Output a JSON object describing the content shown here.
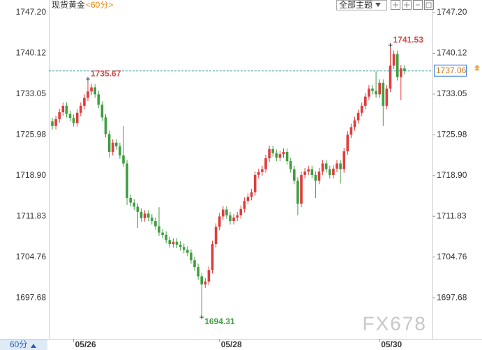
{
  "header": {
    "title": "现货黄金",
    "period": "<60分>",
    "theme_button": "全部主题"
  },
  "footer": {
    "period_tab": "60分",
    "watermark": "FX678"
  },
  "chart_data": {
    "type": "candlestick",
    "categories": [
      null,
      null,
      null,
      null,
      null,
      null,
      "05/26",
      null,
      null,
      null,
      null,
      null,
      null,
      null,
      null,
      null,
      null,
      null,
      null,
      null,
      null,
      null,
      null,
      null,
      null,
      null,
      null,
      null,
      null,
      null,
      null,
      null,
      null,
      null,
      null,
      null,
      null,
      null,
      null,
      null,
      null,
      null,
      null,
      null,
      null,
      null,
      null,
      "05/28",
      null,
      null,
      null,
      null,
      null,
      null,
      null,
      null,
      null,
      null,
      null,
      null,
      null,
      null,
      null,
      null,
      null,
      null,
      null,
      null,
      null,
      null,
      null,
      null,
      null,
      null,
      null,
      null,
      null,
      null,
      null,
      null,
      null,
      null,
      null,
      null,
      null,
      null,
      null,
      null,
      null,
      null,
      null,
      null,
      "05/30",
      null,
      null,
      null,
      null,
      null,
      null,
      null
    ],
    "candles": {
      "open": [
        1728.3,
        1727.5,
        1728.7,
        1729.9,
        1731.0,
        1729.6,
        1728.9,
        1728.0,
        1729.8,
        1731.0,
        1732.4,
        1733.5,
        1734.2,
        1733.0,
        1731.2,
        1729.0,
        1726.1,
        1723.0,
        1724.6,
        1724.0,
        1722.4,
        1721.0,
        1715.0,
        1714.2,
        1713.5,
        1712.6,
        1711.5,
        1712.3,
        1711.6,
        1711.0,
        1710.1,
        1709.0,
        1708.6,
        1707.7,
        1707.0,
        1707.4,
        1706.9,
        1706.5,
        1706.0,
        1705.5,
        1704.2,
        1703.0,
        1701.4,
        1700.0,
        1700.5,
        1702.5,
        1707.0,
        1710.0,
        1711.8,
        1713.0,
        1712.0,
        1711.0,
        1711.6,
        1712.0,
        1713.1,
        1714.5,
        1715.2,
        1716.0,
        1719.0,
        1719.5,
        1720.0,
        1721.9,
        1723.5,
        1722.8,
        1722.0,
        1722.6,
        1723.0,
        1721.4,
        1720.0,
        1718.0,
        1714.0,
        1719.0,
        1719.6,
        1720.0,
        1719.0,
        1718.0,
        1719.6,
        1721.0,
        1720.0,
        1719.0,
        1720.1,
        1721.0,
        1720.0,
        1723.1,
        1726.0,
        1727.3,
        1728.5,
        1729.8,
        1731.0,
        1732.6,
        1734.0,
        1733.6,
        1733.0,
        1735.0,
        1731.0,
        1734.0,
        1738.0,
        1740.0,
        1736.0,
        1737.5
      ],
      "high": [
        1728.9,
        1729.3,
        1730.5,
        1731.6,
        1731.6,
        1730.2,
        1729.5,
        1730.4,
        1731.6,
        1733.0,
        1735.67,
        1734.8,
        1734.8,
        1733.6,
        1731.8,
        1729.6,
        1726.7,
        1725.2,
        1725.2,
        1724.6,
        1727.5,
        1721.6,
        1715.6,
        1714.8,
        1714.1,
        1713.2,
        1712.9,
        1712.9,
        1712.2,
        1711.6,
        1713.4,
        1709.6,
        1709.2,
        1708.3,
        1708.0,
        1708.0,
        1707.5,
        1707.1,
        1706.6,
        1706.1,
        1704.8,
        1703.6,
        1702.0,
        1701.1,
        1703.1,
        1707.6,
        1710.6,
        1712.4,
        1713.6,
        1713.6,
        1712.6,
        1712.2,
        1712.6,
        1713.7,
        1715.1,
        1715.8,
        1716.6,
        1719.6,
        1720.1,
        1720.6,
        1722.5,
        1724.1,
        1724.1,
        1723.4,
        1723.2,
        1723.6,
        1723.6,
        1722.0,
        1720.6,
        1718.6,
        1719.6,
        1720.2,
        1720.6,
        1720.6,
        1719.6,
        1720.2,
        1721.6,
        1721.6,
        1720.6,
        1720.7,
        1721.6,
        1721.6,
        1723.7,
        1726.6,
        1727.9,
        1729.1,
        1730.4,
        1731.6,
        1733.2,
        1734.6,
        1734.6,
        1737.0,
        1735.6,
        1735.6,
        1734.6,
        1741.53,
        1740.6,
        1740.6,
        1738.1,
        1738.1
      ],
      "low": [
        1726.9,
        1726.9,
        1728.1,
        1729.3,
        1729.0,
        1728.3,
        1727.4,
        1727.4,
        1729.2,
        1730.4,
        1731.8,
        1732.9,
        1732.4,
        1730.6,
        1728.4,
        1725.5,
        1722.0,
        1722.4,
        1723.4,
        1721.8,
        1720.4,
        1713.8,
        1713.6,
        1712.9,
        1709.8,
        1710.9,
        1710.9,
        1711.0,
        1710.4,
        1709.5,
        1708.4,
        1708.0,
        1707.1,
        1706.4,
        1706.4,
        1706.3,
        1705.9,
        1705.4,
        1704.9,
        1703.6,
        1702.4,
        1700.8,
        1694.31,
        1699.4,
        1699.9,
        1701.9,
        1706.4,
        1709.4,
        1711.2,
        1711.4,
        1710.4,
        1710.4,
        1711.0,
        1711.4,
        1712.5,
        1713.9,
        1714.6,
        1715.4,
        1718.4,
        1718.9,
        1719.4,
        1721.3,
        1722.2,
        1721.4,
        1721.4,
        1722.0,
        1720.8,
        1719.4,
        1717.4,
        1712.0,
        1713.4,
        1718.4,
        1719.0,
        1718.4,
        1715.0,
        1717.4,
        1719.0,
        1719.4,
        1718.4,
        1718.4,
        1719.5,
        1717.5,
        1719.4,
        1722.5,
        1725.4,
        1726.7,
        1727.9,
        1729.2,
        1730.4,
        1732.0,
        1733.0,
        1732.4,
        1732.4,
        1727.5,
        1730.4,
        1733.4,
        1737.4,
        1735.4,
        1732.0,
        1736.5
      ],
      "close": [
        1727.5,
        1728.7,
        1729.9,
        1731.0,
        1729.6,
        1728.9,
        1728.0,
        1729.8,
        1731.0,
        1732.4,
        1733.5,
        1734.2,
        1733.0,
        1731.2,
        1729.0,
        1726.1,
        1723.0,
        1724.6,
        1724.0,
        1722.4,
        1721.0,
        1715.0,
        1714.2,
        1713.5,
        1712.6,
        1711.5,
        1712.3,
        1711.6,
        1711.0,
        1710.1,
        1709.0,
        1708.6,
        1707.7,
        1707.0,
        1707.4,
        1706.9,
        1706.5,
        1706.0,
        1705.5,
        1704.2,
        1703.0,
        1701.4,
        1700.0,
        1700.5,
        1702.5,
        1707.0,
        1710.0,
        1711.8,
        1713.0,
        1712.0,
        1711.0,
        1711.6,
        1712.0,
        1713.1,
        1714.5,
        1715.2,
        1716.0,
        1719.0,
        1719.5,
        1720.0,
        1721.9,
        1723.5,
        1722.8,
        1722.0,
        1722.6,
        1723.0,
        1721.4,
        1720.0,
        1718.0,
        1714.0,
        1719.0,
        1719.6,
        1720.0,
        1719.0,
        1718.0,
        1719.6,
        1721.0,
        1720.0,
        1719.0,
        1720.1,
        1721.0,
        1720.0,
        1723.1,
        1726.0,
        1727.3,
        1728.5,
        1729.8,
        1731.0,
        1732.6,
        1734.0,
        1733.6,
        1733.0,
        1735.0,
        1731.0,
        1734.0,
        1738.0,
        1740.0,
        1736.0,
        1737.5,
        1737.06
      ]
    },
    "up_color": "#e03c3c",
    "down_color": "#3f9e3f",
    "annotations": [
      "1735.67",
      "1741.53",
      "1694.31"
    ],
    "last_price": 1737.06,
    "ylim": [
      1690.55,
      1749.38
    ],
    "yticks": [
      {
        "value": 1747.2,
        "label": "1747.20"
      },
      1740.12,
      1733.05,
      1725.98,
      {
        "value": 1718.9,
        "label": "1718.90"
      },
      1711.83,
      1704.76,
      1697.68
    ]
  }
}
